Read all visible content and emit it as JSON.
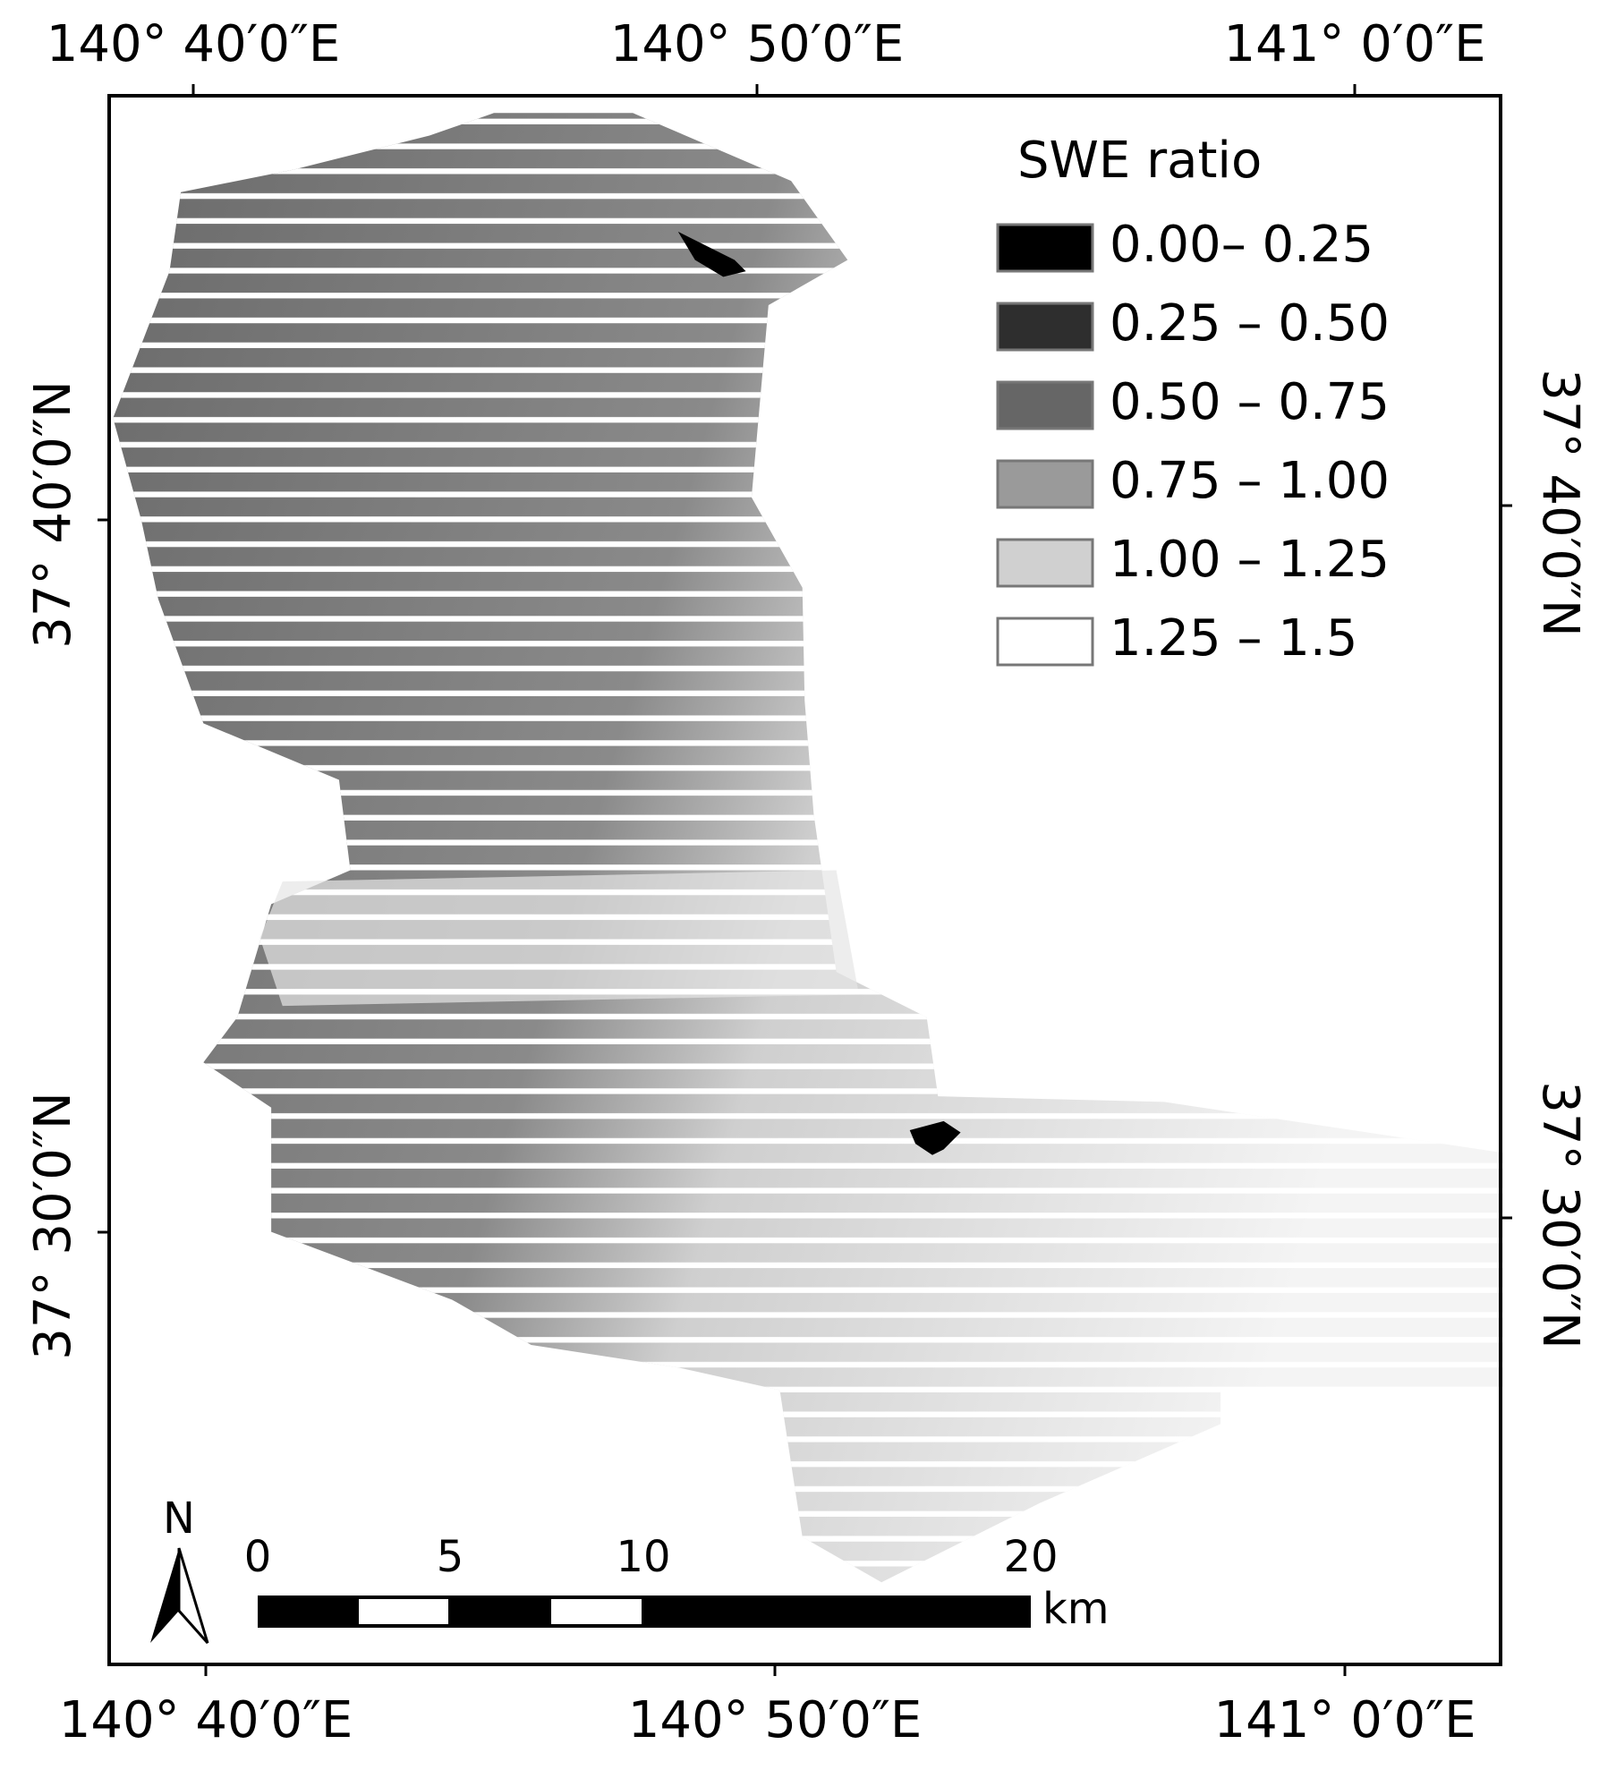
{
  "map": {
    "coordinate_labels": {
      "top": [
        "140° 40′0″E",
        "140° 50′0″E",
        "141° 0′0″E"
      ],
      "bottom": [
        "140° 40′0″E",
        "140° 50′0″E",
        "141° 0′0″E"
      ],
      "left": [
        "37° 40′0″N",
        "37° 30′0″N"
      ],
      "right": [
        "37° 40′0″N",
        "37° 30′0″N"
      ]
    },
    "legend": {
      "title": "SWE ratio",
      "items": [
        {
          "label": "0.00– 0.25",
          "color": "#000000"
        },
        {
          "label": "0.25 – 0.50",
          "color": "#2e2e2e"
        },
        {
          "label": "0.50 – 0.75",
          "color": "#666666"
        },
        {
          "label": "0.75 – 1.00",
          "color": "#9a9a9a"
        },
        {
          "label": "1.00 – 1.25",
          "color": "#d0d0d0"
        },
        {
          "label": "1.25 – 1.5",
          "color": "#ffffff"
        }
      ]
    },
    "scale_bar": {
      "labels": [
        "0",
        "5",
        "10",
        "20"
      ],
      "unit": "km"
    },
    "north_arrow": "N"
  }
}
